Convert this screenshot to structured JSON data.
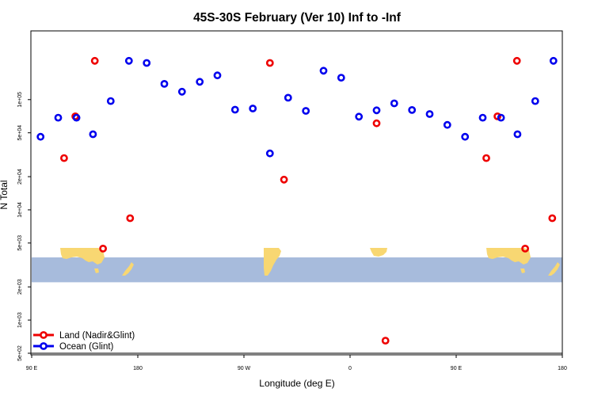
{
  "chart_data": {
    "type": "scatter",
    "title": "45S-30S February (Ver 10)   Inf to -Inf",
    "xlabel": "Longitude (deg E)",
    "ylabel": "N Total",
    "x_scale": "linear",
    "y_scale": "log",
    "xlim": [
      90,
      540
    ],
    "ylim": [
      500,
      400000
    ],
    "x_ticks": [
      {
        "value": 90,
        "label": "90 E"
      },
      {
        "value": 180,
        "label": "180"
      },
      {
        "value": 270,
        "label": "90 W"
      },
      {
        "value": 360,
        "label": "0"
      },
      {
        "value": 450,
        "label": "90 E"
      },
      {
        "value": 540,
        "label": "180"
      }
    ],
    "y_ticks": [
      {
        "value": 500,
        "label": "5e+02"
      },
      {
        "value": 1000,
        "label": "1e+03"
      },
      {
        "value": 2000,
        "label": "2e+03"
      },
      {
        "value": 5000,
        "label": "5e+03"
      },
      {
        "value": 10000,
        "label": "1e+04"
      },
      {
        "value": 20000,
        "label": "2e+04"
      },
      {
        "value": 50000,
        "label": "5e+04"
      },
      {
        "value": 100000,
        "label": "1e+05"
      }
    ],
    "grid": false,
    "legend_position": "bottom-left",
    "map_band": {
      "y_from": 2200,
      "y_to": 3700
    },
    "series": [
      {
        "name": "Land (Nadir&Glint)",
        "color": "#ee0000",
        "points": [
          [
            117.5,
            29500
          ],
          [
            127,
            70500
          ],
          [
            143.5,
            225000
          ],
          [
            150.5,
            4450
          ],
          [
            173.5,
            8400
          ],
          [
            292,
            215000
          ],
          [
            304,
            18800
          ],
          [
            382.5,
            61000
          ],
          [
            390,
            650
          ],
          [
            475.5,
            29500
          ],
          [
            485,
            70500
          ],
          [
            501.5,
            225000
          ],
          [
            508.5,
            4450
          ],
          [
            531.5,
            8400
          ]
        ]
      },
      {
        "name": "Ocean (Glint)",
        "color": "#0000ee",
        "points": [
          [
            97.5,
            46000
          ],
          [
            112.5,
            68500
          ],
          [
            128,
            68500
          ],
          [
            142,
            48500
          ],
          [
            157,
            97000
          ],
          [
            172.5,
            225000
          ],
          [
            187.5,
            215000
          ],
          [
            202.5,
            139000
          ],
          [
            217.5,
            118000
          ],
          [
            232.5,
            145000
          ],
          [
            247.5,
            166000
          ],
          [
            262.5,
            81000
          ],
          [
            277.5,
            83000
          ],
          [
            292,
            32500
          ],
          [
            307.5,
            104000
          ],
          [
            322.5,
            79000
          ],
          [
            337.5,
            183000
          ],
          [
            352.5,
            158000
          ],
          [
            367.5,
            70000
          ],
          [
            382.5,
            80000
          ],
          [
            397.5,
            92500
          ],
          [
            412.5,
            80500
          ],
          [
            427.5,
            74000
          ],
          [
            442.5,
            59000
          ],
          [
            457.5,
            46000
          ],
          [
            472.5,
            68500
          ],
          [
            488,
            68500
          ],
          [
            502,
            48500
          ],
          [
            517,
            97000
          ],
          [
            532.5,
            225000
          ]
        ]
      }
    ]
  }
}
